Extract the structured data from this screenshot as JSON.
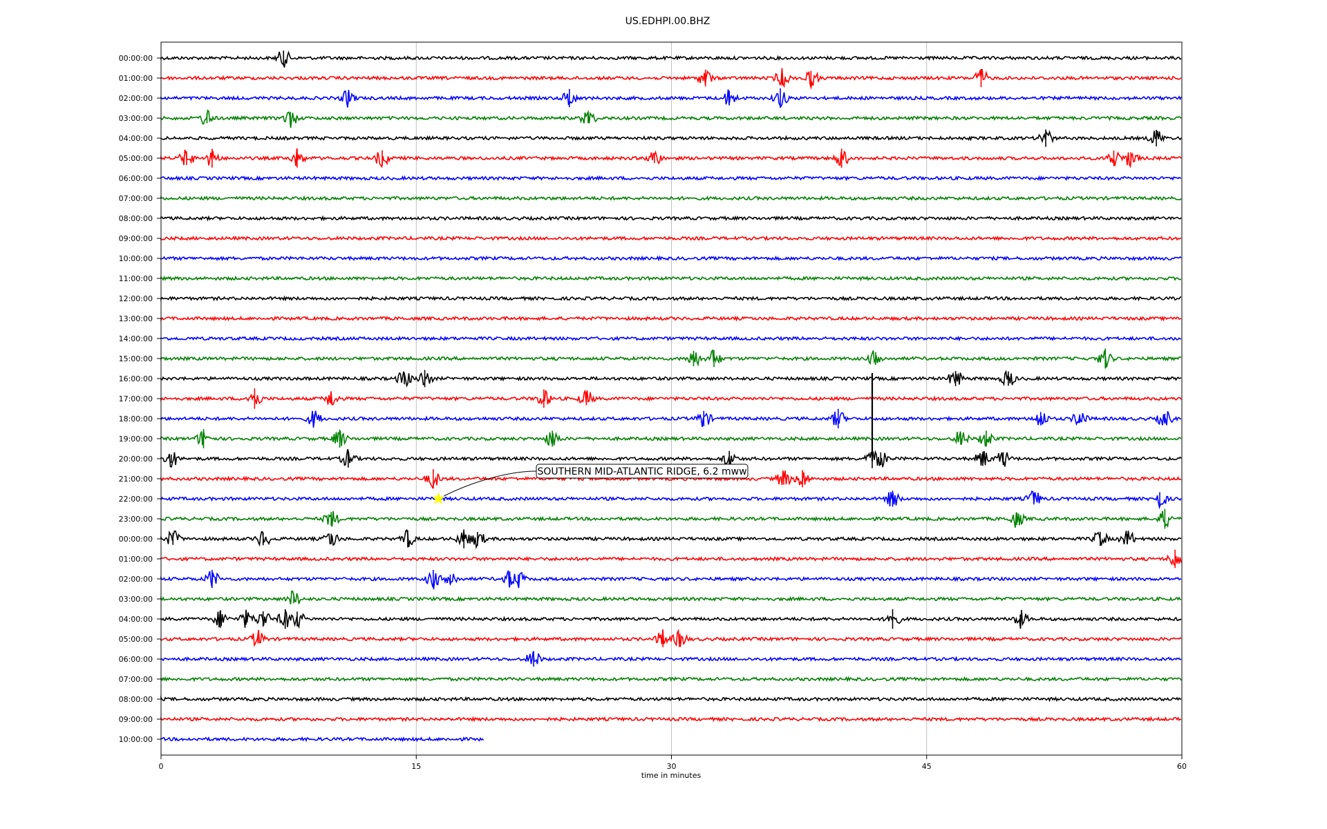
{
  "chart_data": {
    "type": "line",
    "title": "US.EDHPI.00.BHZ",
    "xlabel": "time in minutes",
    "ylabel": "",
    "xlim": [
      0,
      60
    ],
    "x_ticks": [
      0,
      15,
      30,
      45,
      60
    ],
    "x_tick_labels": [
      "0",
      "15",
      "30",
      "45",
      "60"
    ],
    "vertical_grid_at": [
      15,
      30,
      45
    ],
    "trace_color_cycle": [
      "#000000",
      "#ff0000",
      "#0000ff",
      "#008000"
    ],
    "row_labels": [
      "00:00:00",
      "01:00:00",
      "02:00:00",
      "03:00:00",
      "04:00:00",
      "05:00:00",
      "06:00:00",
      "07:00:00",
      "08:00:00",
      "09:00:00",
      "10:00:00",
      "11:00:00",
      "12:00:00",
      "13:00:00",
      "14:00:00",
      "15:00:00",
      "16:00:00",
      "17:00:00",
      "18:00:00",
      "19:00:00",
      "20:00:00",
      "21:00:00",
      "22:00:00",
      "23:00:00",
      "00:00:00",
      "01:00:00",
      "02:00:00",
      "03:00:00",
      "04:00:00",
      "05:00:00",
      "06:00:00",
      "07:00:00",
      "08:00:00",
      "09:00:00",
      "10:00:00"
    ],
    "last_row_end_minute": 19,
    "events": [
      {
        "row": 0,
        "minutes": [
          7.2
        ]
      },
      {
        "row": 1,
        "minutes": [
          32,
          36.5,
          38.2,
          48.2
        ]
      },
      {
        "row": 2,
        "minutes": [
          11,
          24,
          33.4,
          36.4
        ]
      },
      {
        "row": 3,
        "minutes": [
          2.7,
          7.6,
          25.1
        ]
      },
      {
        "row": 4,
        "minutes": [
          52,
          58.5
        ]
      },
      {
        "row": 5,
        "minutes": [
          1.5,
          3,
          8,
          13,
          29,
          40,
          56,
          57
        ]
      },
      {
        "row": 14,
        "minutes": []
      },
      {
        "row": 15,
        "minutes": [
          31.3,
          32.5,
          42,
          55.5
        ]
      },
      {
        "row": 16,
        "minutes": [
          14.3,
          15.5,
          46.7,
          49.8
        ]
      },
      {
        "row": 17,
        "minutes": [
          5.5,
          10,
          22.5,
          25
        ]
      },
      {
        "row": 18,
        "minutes": [
          9,
          31.9,
          39.8,
          51.7,
          54,
          59
        ]
      },
      {
        "row": 19,
        "minutes": [
          2.5,
          10.5,
          23,
          47,
          48.5
        ]
      },
      {
        "row": 20,
        "minutes": [
          0.6,
          11,
          33.4,
          41.8,
          42.3,
          48.3,
          49.5
        ]
      },
      {
        "row": 21,
        "minutes": [
          16,
          36.6,
          37.7
        ]
      },
      {
        "row": 22,
        "minutes": [
          43,
          51.3,
          58.7
        ]
      },
      {
        "row": 23,
        "minutes": [
          10,
          50.3,
          59
        ]
      },
      {
        "row": 24,
        "minutes": [
          0.7,
          6,
          10,
          14.5,
          17.8,
          18.6,
          55.2,
          56.8
        ]
      },
      {
        "row": 25,
        "minutes": [
          59.6
        ]
      },
      {
        "row": 26,
        "minutes": [
          3,
          16,
          17,
          20.5,
          21
        ]
      },
      {
        "row": 27,
        "minutes": [
          7.8
        ]
      },
      {
        "row": 28,
        "minutes": [
          3.5,
          5,
          6,
          7.3,
          8,
          43,
          50.5
        ]
      },
      {
        "row": 29,
        "minutes": [
          5.7,
          29.5,
          30.5
        ]
      },
      {
        "row": 30,
        "minutes": [
          21.9
        ]
      }
    ],
    "annotation": {
      "text": "SOUTHERN MID-ATLANTIC RIDGE, 6.2 mww",
      "marker": "star",
      "marker_color": "#ffff00",
      "row": 22,
      "minute": 16.3
    }
  }
}
